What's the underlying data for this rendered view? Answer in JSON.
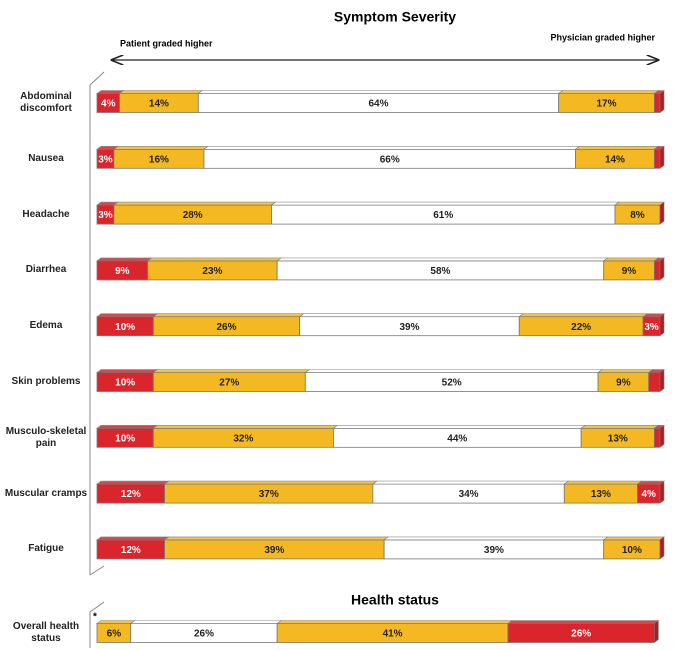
{
  "chart_data": [
    {
      "type": "bar",
      "orientation": "horizontal",
      "stacked": true,
      "title": "Symptom Severity",
      "annotations": [
        "Patient graded higher",
        "Physician graded higher"
      ],
      "categories": [
        "Abdominal discomfort",
        "Nausea",
        "Headache",
        "Diarrhea",
        "Edema",
        "Skin problems",
        "Musculo-skeletal pain",
        "Muscular cramps",
        "Fatigue"
      ],
      "xlim": [
        0,
        100
      ],
      "series": [
        {
          "color": "#d9252b",
          "values": [
            4,
            3,
            3,
            9,
            10,
            10,
            10,
            12,
            12
          ],
          "value_labels": [
            "4%",
            "3%",
            "3%",
            "9%",
            "10%",
            "10%",
            "10%",
            "12%",
            "12%"
          ]
        },
        {
          "color": "#f4b823",
          "values": [
            14,
            16,
            28,
            23,
            26,
            27,
            32,
            37,
            39
          ],
          "value_labels": [
            "14%",
            "16%",
            "28%",
            "23%",
            "26%",
            "27%",
            "32%",
            "37%",
            "39%"
          ]
        },
        {
          "color": "#ffffff",
          "values": [
            64,
            66,
            61,
            58,
            39,
            52,
            44,
            34,
            39
          ],
          "value_labels": [
            "64%",
            "66%",
            "61%",
            "58%",
            "39%",
            "52%",
            "44%",
            "34%",
            "39%"
          ]
        },
        {
          "color": "#f4b823",
          "values": [
            17,
            14,
            8,
            9,
            22,
            9,
            13,
            13,
            10
          ],
          "value_labels": [
            "17%",
            "14%",
            "8%",
            "9%",
            "22%",
            "9%",
            "13%",
            "13%",
            "10%"
          ]
        },
        {
          "color": "#d9252b",
          "values": [
            1,
            1,
            0,
            1,
            3,
            2,
            1,
            4,
            0
          ],
          "value_labels": [
            null,
            null,
            null,
            null,
            "3%",
            null,
            null,
            "4%",
            null
          ]
        }
      ]
    },
    {
      "type": "bar",
      "orientation": "horizontal",
      "stacked": true,
      "title": "Health status",
      "annotations": [
        "*"
      ],
      "categories": [
        "Overall health status"
      ],
      "xlim": [
        0,
        100
      ],
      "series": [
        {
          "color": "#f4b823",
          "values": [
            6
          ],
          "value_labels": [
            "6%"
          ]
        },
        {
          "color": "#ffffff",
          "values": [
            26
          ],
          "value_labels": [
            "26%"
          ]
        },
        {
          "color": "#f4b823",
          "values": [
            41
          ],
          "value_labels": [
            "41%"
          ]
        },
        {
          "color": "#d9252b",
          "values": [
            26
          ],
          "value_labels": [
            "26%"
          ]
        }
      ]
    }
  ]
}
